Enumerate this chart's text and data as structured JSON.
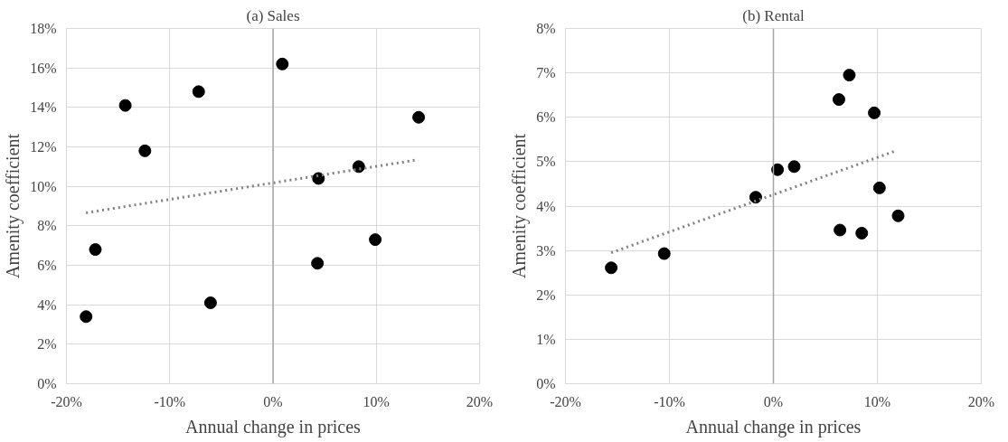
{
  "chart_data": [
    {
      "type": "scatter",
      "title": "(a) Sales",
      "xlabel": "Annual change in prices",
      "ylabel": "Amenity coefficient",
      "xlim": [
        -20,
        20
      ],
      "xticks": [
        {
          "value": -20,
          "label": "-20%"
        },
        {
          "value": -10,
          "label": "-10%"
        },
        {
          "value": 0,
          "label": "0%"
        },
        {
          "value": 10,
          "label": "10%"
        },
        {
          "value": 20,
          "label": "20%"
        }
      ],
      "ylim": [
        0,
        18
      ],
      "yticks": [
        {
          "value": 0,
          "label": "0%"
        },
        {
          "value": 2,
          "label": "2%"
        },
        {
          "value": 4,
          "label": "4%"
        },
        {
          "value": 6,
          "label": "6%"
        },
        {
          "value": 8,
          "label": "8%"
        },
        {
          "value": 10,
          "label": "10%"
        },
        {
          "value": 12,
          "label": "12%"
        },
        {
          "value": 14,
          "label": "14%"
        },
        {
          "value": 16,
          "label": "16%"
        },
        {
          "value": 18,
          "label": "18%"
        }
      ],
      "grid": true,
      "marker": "circle",
      "ref_lines": [
        {
          "axis": "x",
          "value": 0,
          "label": null,
          "color": "#a6a6a6"
        }
      ],
      "series": [
        {
          "color": "#000000",
          "x": [
            -18.1,
            -17.2,
            -14.3,
            -12.4,
            -7.2,
            -6.05,
            0.9,
            4.4,
            4.3,
            8.3,
            9.9,
            14.1
          ],
          "values": [
            3.4,
            6.8,
            14.1,
            11.8,
            14.8,
            4.1,
            16.2,
            10.4,
            6.1,
            11.0,
            7.3,
            13.5
          ]
        },
        {
          "type": "line",
          "color": "#808080",
          "line_style": "dotted",
          "marker": "none",
          "x": [
            -18.1,
            13.9
          ],
          "values": [
            8.66,
            11.34
          ]
        }
      ]
    },
    {
      "type": "scatter",
      "title": "(b) Rental",
      "xlabel": "Annual change in prices",
      "ylabel": "Amenity coefficient",
      "xlim": [
        -20,
        20
      ],
      "xticks": [
        {
          "value": -20,
          "label": "-20%"
        },
        {
          "value": -10,
          "label": "-10%"
        },
        {
          "value": 0,
          "label": "0%"
        },
        {
          "value": 10,
          "label": "10%"
        },
        {
          "value": 20,
          "label": "20%"
        }
      ],
      "ylim": [
        0,
        8
      ],
      "yticks": [
        {
          "value": 0,
          "label": "0%"
        },
        {
          "value": 1,
          "label": "1%"
        },
        {
          "value": 2,
          "label": "2%"
        },
        {
          "value": 3,
          "label": "3%"
        },
        {
          "value": 4,
          "label": "4%"
        },
        {
          "value": 5,
          "label": "5%"
        },
        {
          "value": 6,
          "label": "6%"
        },
        {
          "value": 7,
          "label": "7%"
        },
        {
          "value": 8,
          "label": "8%"
        }
      ],
      "grid": true,
      "marker": "circle",
      "ref_lines": [
        {
          "axis": "x",
          "value": 0,
          "label": null,
          "color": "#a6a6a6"
        }
      ],
      "series": [
        {
          "color": "#000000",
          "x": [
            -15.6,
            -10.5,
            -1.7,
            0.4,
            2.0,
            6.3,
            7.3,
            9.7,
            6.4,
            8.5,
            10.2,
            12.0
          ],
          "values": [
            2.61,
            2.93,
            4.2,
            4.82,
            4.89,
            6.4,
            6.95,
            6.1,
            3.46,
            3.39,
            4.41,
            3.78
          ]
        },
        {
          "type": "line",
          "color": "#808080",
          "line_style": "dotted",
          "marker": "none",
          "x": [
            -15.6,
            11.6
          ],
          "values": [
            2.95,
            5.23
          ]
        }
      ]
    }
  ]
}
